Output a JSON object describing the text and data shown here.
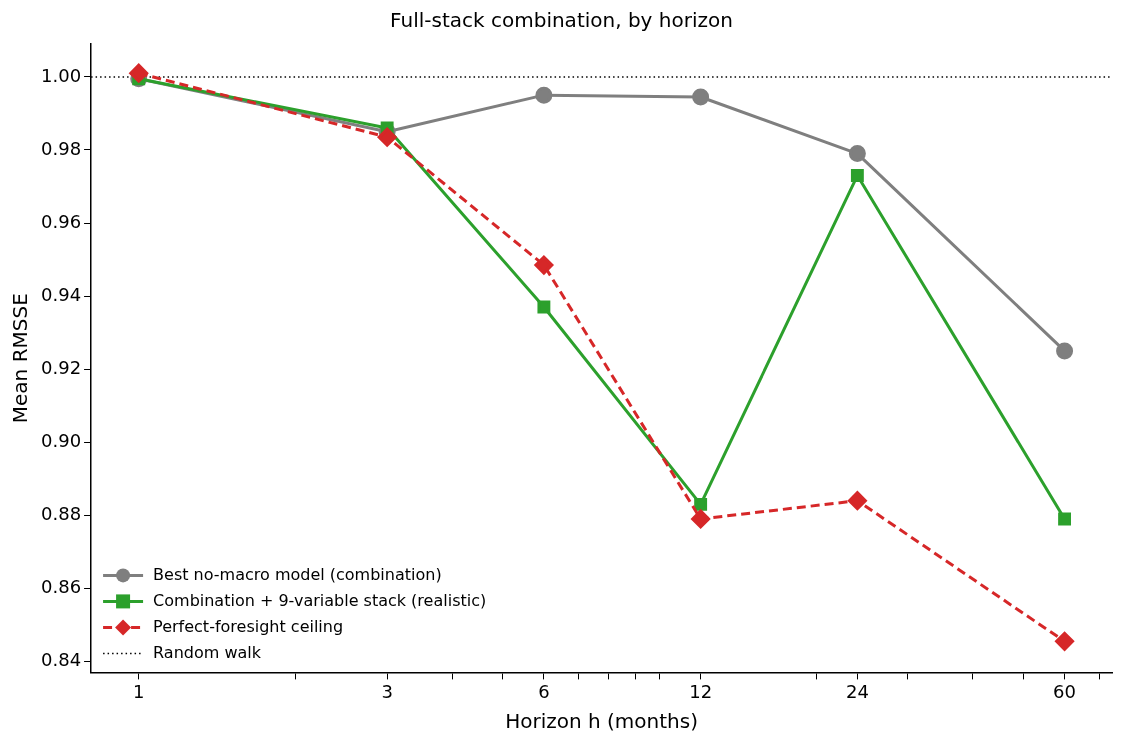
{
  "chart_data": {
    "type": "line",
    "title": "Full-stack combination, by horizon",
    "xlabel": "Horizon h (months)",
    "ylabel": "Mean RMSSE",
    "x": [
      1,
      3,
      6,
      12,
      24,
      60
    ],
    "series": [
      {
        "name": "Best no-macro model (combination)",
        "color": "#7f7f7f",
        "marker": "circle",
        "line_style": "solid",
        "values": [
          0.9995,
          0.985,
          0.995,
          0.9945,
          0.979,
          0.925
        ]
      },
      {
        "name": "Combination + 9-variable stack (realistic)",
        "color": "#2ca02c",
        "marker": "square",
        "line_style": "solid",
        "values": [
          0.9995,
          0.986,
          0.937,
          0.883,
          0.973,
          0.879
        ]
      },
      {
        "name": "Perfect-foresight ceiling",
        "color": "#d62728",
        "marker": "diamond",
        "line_style": "dashed",
        "values": [
          1.001,
          0.9835,
          0.9485,
          0.879,
          0.884,
          0.8455
        ]
      }
    ],
    "ref_lines": [
      {
        "axis": "y",
        "value": 1.0,
        "label": "Random walk",
        "color": "#000000",
        "line_style": "dotted"
      }
    ],
    "log": "x",
    "xlim": [
      0.81,
      74
    ],
    "xticks": [
      1,
      {
        "value": 2,
        "label": null
      },
      3,
      {
        "value": 4,
        "label": null
      },
      {
        "value": 5,
        "label": null
      },
      6,
      {
        "value": 7,
        "label": null
      },
      {
        "value": 8,
        "label": null
      },
      {
        "value": 9,
        "label": null
      },
      {
        "value": 10,
        "label": null
      },
      12,
      {
        "value": 20,
        "label": null
      },
      24,
      {
        "value": 30,
        "label": null
      },
      {
        "value": 40,
        "label": null
      },
      {
        "value": 50,
        "label": null
      },
      60,
      {
        "value": 70,
        "label": null
      }
    ],
    "ylim": [
      0.837,
      1.009
    ],
    "yticks": [
      {
        "value": 0.84,
        "label": "0.84"
      },
      {
        "value": 0.86,
        "label": "0.86"
      },
      {
        "value": 0.88,
        "label": "0.88"
      },
      {
        "value": 0.9,
        "label": "0.90"
      },
      {
        "value": 0.92,
        "label": "0.92"
      },
      {
        "value": 0.94,
        "label": "0.94"
      },
      {
        "value": 0.96,
        "label": "0.96"
      },
      {
        "value": 0.98,
        "label": "0.98"
      },
      {
        "value": 1.0,
        "label": "1.00"
      }
    ],
    "grid": false,
    "legend": "bottom left"
  }
}
